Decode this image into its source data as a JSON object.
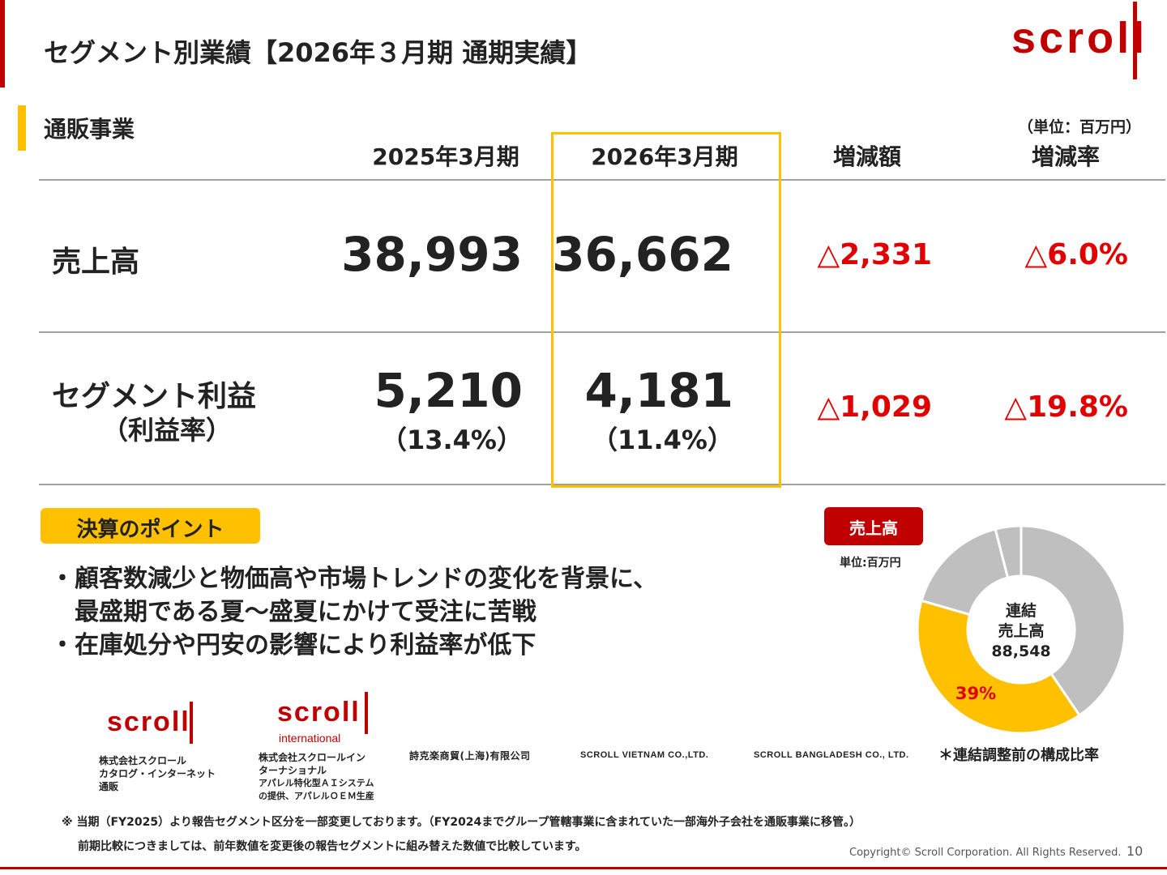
{
  "header": {
    "title": "セグメント別業績【2026年３月期 通期実績】",
    "logo_text": "scroll"
  },
  "section": {
    "title": "通販事業",
    "unit": "（単位：百万円）"
  },
  "table": {
    "columns": [
      "2025年3月期",
      "2026年3月期",
      "増減額",
      "増減率"
    ],
    "rows": [
      {
        "label": "売上高",
        "prev": "38,993",
        "curr": "36,662",
        "diff": "△2,331",
        "rate": "△6.0%"
      },
      {
        "label": "セグメント利益",
        "sublabel": "（利益率）",
        "prev": "5,210",
        "prev_sub": "（13.4%）",
        "curr": "4,181",
        "curr_sub": "（11.4%）",
        "diff": "△1,029",
        "rate": "△19.8%"
      }
    ]
  },
  "points": {
    "label": "決算のポイント",
    "bullets": [
      "・顧客数減少と物価高や市場トレンドの変化を背景に、",
      "　最盛期である夏～盛夏にかけて受注に苦戦",
      "・在庫処分や円安の影響により利益率が低下"
    ]
  },
  "donut": {
    "badge": "売上高",
    "unit": "単位:百万円",
    "center": [
      "連結",
      "売上高",
      "88,548"
    ],
    "highlight_label": "39%",
    "note": "＊連結調整前の構成比率",
    "colors": {
      "highlight": "#ffc000",
      "other": "#bfbfbf"
    }
  },
  "chart_data": {
    "type": "pie",
    "categories": [
      "",
      "",
      "",
      ""
    ],
    "values": [
      40.5,
      39,
      16.5,
      4
    ],
    "title": "",
    "center_text": "連結 売上高 88,548",
    "data_labels": [
      "",
      "39%",
      "",
      ""
    ]
  },
  "companies": [
    {
      "logo": "scroll",
      "lines": [
        "株式会社スクロール",
        "カタログ・インターネット",
        "通販"
      ]
    },
    {
      "logo": "scroll",
      "logo_sub": "international",
      "lines": [
        "株式会社スクロールイン",
        "ターナショナル",
        "アパレル特化型ＡＩシステム",
        "の提供、アパレルＯＥＭ生産"
      ]
    },
    {
      "name": "詩克楽商貿(上海)有限公司"
    },
    {
      "name": "SCROLL VIETNAM CO.,LTD."
    },
    {
      "name": "SCROLL BANGLADESH CO., LTD."
    }
  ],
  "footnotes": [
    "※ 当期（FY2025）より報告セグメント区分を一部変更しております。（FY2024までグループ管轄事業に含まれていた一部海外子会社を通販事業に移管。）",
    "前期比較につきましては、前年数値を変更後の報告セグメントに組み替えた数値で比較しています。"
  ],
  "footer": {
    "copyright": "Copyright© Scroll Corporation. All Rights Reserved.",
    "page": "10"
  }
}
